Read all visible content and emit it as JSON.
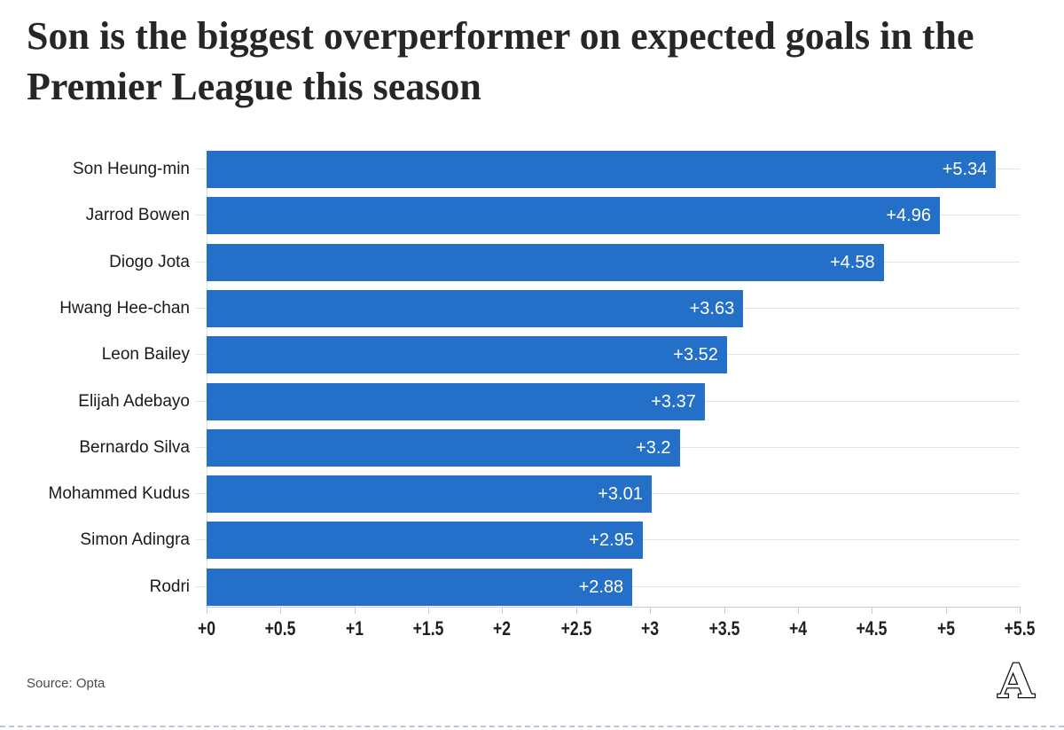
{
  "title": "Son is the biggest overperformer on expected goals in the Premier League this season",
  "source": {
    "label": "Source: Opta"
  },
  "logo": {
    "letter": "A",
    "name": "the-athletic-logo"
  },
  "colors": {
    "bar": "#2470c8",
    "row_line": "#e4e4e4",
    "axis": "#cccccc",
    "title_text": "#262626",
    "category_text": "#1a1a1a",
    "value_text": "#ffffff",
    "tick_text": "#1f1f1f",
    "source_text": "#4a4a4a",
    "bottom_dashed_rule": "#b7c8da"
  },
  "chart_data": {
    "type": "bar",
    "orientation": "horizontal",
    "title": "Son is the biggest overperformer on expected goals in the Premier League this season",
    "categories": [
      "Son Heung-min",
      "Jarrod Bowen",
      "Diogo Jota",
      "Hwang Hee-chan",
      "Leon Bailey",
      "Elijah Adebayo",
      "Bernardo Silva",
      "Mohammed Kudus",
      "Simon Adingra",
      "Rodri"
    ],
    "values": [
      5.34,
      4.96,
      4.58,
      3.63,
      3.52,
      3.37,
      3.2,
      3.01,
      2.95,
      2.88
    ],
    "value_labels": [
      "+5.34",
      "+4.96",
      "+4.58",
      "+3.63",
      "+3.52",
      "+3.37",
      "+3.2",
      "+3.01",
      "+2.95",
      "+2.88"
    ],
    "xlabel": "",
    "ylabel": "",
    "xlim": [
      0,
      5.5
    ],
    "x_ticks": {
      "values": [
        0,
        0.5,
        1,
        1.5,
        2,
        2.5,
        3,
        3.5,
        4,
        4.5,
        5,
        5.5
      ],
      "labels": [
        "+0",
        "+0.5",
        "+1",
        "+1.5",
        "+2",
        "+2.5",
        "+3",
        "+3.5",
        "+4",
        "+4.5",
        "+5",
        "+5.5"
      ]
    },
    "grid": "horizontal row lines only",
    "legend": "none",
    "value_label_position": "inside-end",
    "source": "Source: Opta"
  }
}
